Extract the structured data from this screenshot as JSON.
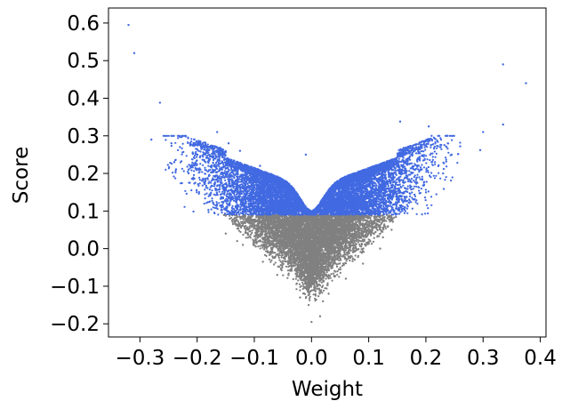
{
  "chart_data": {
    "type": "scatter",
    "xlabel": "Weight",
    "ylabel": "Score",
    "xlim": [
      -0.355,
      0.41
    ],
    "ylim": [
      -0.235,
      0.64
    ],
    "xticks": [
      -0.3,
      -0.2,
      -0.1,
      0.0,
      0.1,
      0.2,
      0.3,
      0.4
    ],
    "xtick_labels": [
      "−0.3",
      "−0.2",
      "−0.1",
      "0.0",
      "0.1",
      "0.2",
      "0.3",
      "0.4"
    ],
    "yticks": [
      -0.2,
      -0.1,
      0.0,
      0.1,
      0.2,
      0.3,
      0.4,
      0.5,
      0.6
    ],
    "ytick_labels": [
      "−0.2",
      "−0.1",
      "0.0",
      "0.1",
      "0.2",
      "0.3",
      "0.4",
      "0.5",
      "0.6"
    ],
    "grid": false,
    "threshold": 0.09,
    "colors": {
      "above_threshold": "#4169e1",
      "below_threshold": "#808080"
    },
    "series": [
      {
        "color": "#4169e1",
        "points": [
          [
            -0.32,
            0.595
          ],
          [
            -0.31,
            0.52
          ],
          [
            -0.265,
            0.388
          ],
          [
            -0.28,
            0.29
          ],
          [
            -0.245,
            0.28
          ],
          [
            -0.23,
            0.27
          ],
          [
            -0.2,
            0.25
          ],
          [
            -0.165,
            0.31
          ],
          [
            -0.145,
            0.28
          ],
          [
            -0.125,
            0.26
          ],
          [
            -0.09,
            0.22
          ],
          [
            -0.01,
            0.25
          ],
          [
            0.155,
            0.338
          ],
          [
            0.205,
            0.325
          ],
          [
            0.21,
            0.3
          ],
          [
            0.225,
            0.27
          ],
          [
            0.245,
            0.25
          ],
          [
            0.26,
            0.272
          ],
          [
            0.3,
            0.31
          ],
          [
            0.335,
            0.49
          ],
          [
            0.335,
            0.33
          ],
          [
            0.375,
            0.44
          ],
          [
            0.295,
            0.262
          ],
          [
            -0.215,
            0.21
          ],
          [
            0.23,
            0.2
          ],
          [
            0.21,
            0.23
          ],
          [
            -0.18,
            0.24
          ],
          [
            -0.24,
            0.23
          ]
        ]
      },
      {
        "color": "#808080",
        "points": [
          [
            0.0,
            -0.195
          ],
          [
            0.015,
            -0.18
          ],
          [
            -0.005,
            -0.15
          ],
          [
            0.02,
            -0.14
          ],
          [
            -0.02,
            -0.13
          ],
          [
            0.03,
            -0.12
          ],
          [
            0.06,
            -0.08
          ],
          [
            -0.06,
            -0.07
          ],
          [
            0.09,
            -0.04
          ],
          [
            -0.085,
            -0.035
          ],
          [
            0.12,
            0.0
          ],
          [
            -0.12,
            0.01
          ],
          [
            0.14,
            0.05
          ],
          [
            -0.15,
            0.04
          ],
          [
            -0.13,
            0.02
          ],
          [
            0.125,
            0.03
          ]
        ]
      }
    ],
    "cloud": {
      "count": 16000,
      "x_spread": 0.085,
      "baseline": 0.065,
      "slope": 0.95,
      "noise": 0.034,
      "dip": 0.04
    }
  }
}
